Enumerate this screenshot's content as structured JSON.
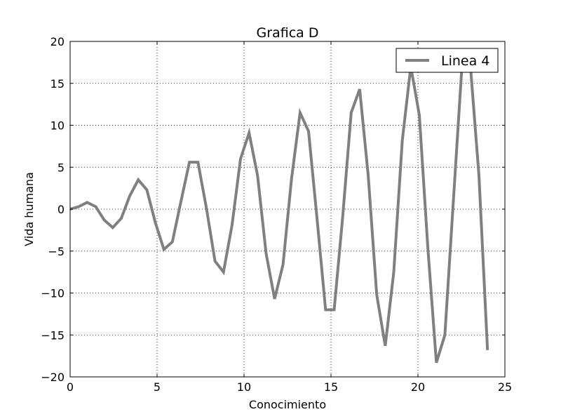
{
  "chart_data": {
    "type": "line",
    "title": "Grafica D",
    "xlabel": "Conocimiento",
    "ylabel": "Vida humana",
    "xlim": [
      0,
      25
    ],
    "ylim": [
      -20,
      20
    ],
    "xticks": [
      0,
      5,
      10,
      15,
      20,
      25
    ],
    "yticks": [
      -20,
      -15,
      -10,
      -5,
      0,
      5,
      10,
      15,
      20
    ],
    "grid": true,
    "legend_position": "top-right",
    "series": [
      {
        "name": "Linea 4",
        "color": "#808080",
        "x": [
          0,
          0.49,
          0.98,
          1.47,
          1.96,
          2.45,
          2.94,
          3.43,
          3.92,
          4.41,
          4.9,
          5.39,
          5.88,
          6.37,
          6.86,
          7.35,
          7.84,
          8.33,
          8.82,
          9.31,
          9.8,
          10.29,
          10.78,
          11.27,
          11.76,
          12.24,
          12.73,
          13.22,
          13.71,
          14.2,
          14.69,
          15.18,
          15.67,
          16.16,
          16.65,
          17.14,
          17.63,
          18.12,
          18.61,
          19.1,
          19.59,
          20.08,
          20.57,
          21.06,
          21.55,
          22.04,
          22.53,
          23.02,
          23.51,
          24.0
        ],
        "y": [
          0,
          0.3,
          0.8,
          0.3,
          -1.3,
          -2.2,
          -1.1,
          1.6,
          3.5,
          2.3,
          -1.6,
          -4.8,
          -3.9,
          0.9,
          5.6,
          5.6,
          0.1,
          -6.2,
          -7.5,
          -1.9,
          6.0,
          9.1,
          4.0,
          -5.3,
          -10.7,
          -6.6,
          3.6,
          11.5,
          9.3,
          -1.2,
          -12.0,
          -12.0,
          -1.0,
          11.5,
          14.3,
          4.0,
          -10.2,
          -16.3,
          -7.5,
          8.2,
          17.0,
          11.2,
          -4.6,
          -18.3,
          -15.0,
          1.1,
          17.0,
          17.0,
          4.0,
          -16.8
        ]
      }
    ]
  }
}
